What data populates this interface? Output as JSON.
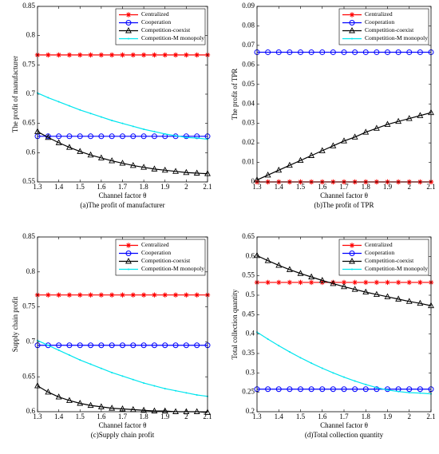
{
  "chart_data": [
    {
      "type": "line",
      "xlabel": "Channel factor θ",
      "ylabel": "The profit of manufacturer",
      "caption": "(a)The profit of manufacturer",
      "x": [
        1.3,
        1.35,
        1.4,
        1.45,
        1.5,
        1.55,
        1.6,
        1.65,
        1.7,
        1.75,
        1.8,
        1.85,
        1.9,
        1.95,
        2,
        2.05,
        2.1
      ],
      "xlim": [
        1.3,
        2.1
      ],
      "xticks": [
        1.3,
        1.4,
        1.5,
        1.6,
        1.7,
        1.8,
        1.9,
        2,
        2.1
      ],
      "ylim": [
        0.55,
        0.85
      ],
      "yticks": [
        0.55,
        0.6,
        0.65,
        0.7,
        0.75,
        0.8,
        0.85
      ],
      "legend": "upper right",
      "series": [
        {
          "name": "Centralized",
          "color": "#ff0000",
          "marker": "star",
          "values": [
            0.767,
            0.767,
            0.767,
            0.767,
            0.767,
            0.767,
            0.767,
            0.767,
            0.767,
            0.767,
            0.767,
            0.767,
            0.767,
            0.767,
            0.767,
            0.767,
            0.767
          ]
        },
        {
          "name": "Cooperation",
          "color": "#0000ff",
          "marker": "circle",
          "values": [
            0.628,
            0.628,
            0.628,
            0.628,
            0.628,
            0.628,
            0.628,
            0.628,
            0.628,
            0.628,
            0.628,
            0.628,
            0.628,
            0.628,
            0.628,
            0.628,
            0.628
          ]
        },
        {
          "name": "Competition-coexist",
          "color": "#000000",
          "marker": "triangle",
          "values": [
            0.636,
            0.626,
            0.617,
            0.609,
            0.602,
            0.596,
            0.591,
            0.586,
            0.582,
            0.578,
            0.575,
            0.572,
            0.57,
            0.568,
            0.566,
            0.565,
            0.564
          ]
        },
        {
          "name": "Competition-M monopoly",
          "color": "#00e5ee",
          "marker": "dot",
          "values": [
            0.702,
            0.694,
            0.687,
            0.68,
            0.673,
            0.667,
            0.661,
            0.655,
            0.65,
            0.645,
            0.64,
            0.636,
            0.632,
            0.629,
            0.626,
            0.625,
            0.623
          ]
        }
      ]
    },
    {
      "type": "line",
      "xlabel": "Channel factor θ",
      "ylabel": "The profit of TPR",
      "caption": "(b)The profit of TPR",
      "x": [
        1.3,
        1.35,
        1.4,
        1.45,
        1.5,
        1.55,
        1.6,
        1.65,
        1.7,
        1.75,
        1.8,
        1.85,
        1.9,
        1.95,
        2,
        2.05,
        2.1
      ],
      "xlim": [
        1.3,
        2.1
      ],
      "xticks": [
        1.3,
        1.4,
        1.5,
        1.6,
        1.7,
        1.8,
        1.9,
        2,
        2.1
      ],
      "ylim": [
        0,
        0.09
      ],
      "yticks": [
        0,
        0.01,
        0.02,
        0.03,
        0.04,
        0.05,
        0.06,
        0.07,
        0.08,
        0.09
      ],
      "legend": "upper right",
      "series": [
        {
          "name": "Centralized",
          "color": "#ff0000",
          "marker": "star",
          "values": [
            0,
            0,
            0,
            0,
            0,
            0,
            0,
            0,
            0,
            0,
            0,
            0,
            0,
            0,
            0,
            0,
            0
          ]
        },
        {
          "name": "Cooperation",
          "color": "#0000ff",
          "marker": "circle",
          "values": [
            0.0665,
            0.0665,
            0.0665,
            0.0665,
            0.0665,
            0.0665,
            0.0665,
            0.0665,
            0.0665,
            0.0665,
            0.0665,
            0.0665,
            0.0665,
            0.0665,
            0.0665,
            0.0665,
            0.0665
          ]
        },
        {
          "name": "Competition-coexist",
          "color": "#000000",
          "marker": "triangle",
          "values": [
            0.001,
            0.0035,
            0.006,
            0.0085,
            0.011,
            0.0135,
            0.016,
            0.0185,
            0.021,
            0.023,
            0.0255,
            0.0275,
            0.0295,
            0.031,
            0.0325,
            0.034,
            0.0355
          ]
        },
        {
          "name": "Competition-M monopoly",
          "color": "#00e5ee",
          "marker": "dot",
          "values": [
            null,
            null,
            null,
            null,
            null,
            null,
            null,
            null,
            null,
            null,
            null,
            null,
            null,
            null,
            null,
            null,
            null
          ]
        }
      ]
    },
    {
      "type": "line",
      "xlabel": "Channel factor θ",
      "ylabel": "Supply chain profit",
      "caption": "(c)Supply chain profit",
      "x": [
        1.3,
        1.35,
        1.4,
        1.45,
        1.5,
        1.55,
        1.6,
        1.65,
        1.7,
        1.75,
        1.8,
        1.85,
        1.9,
        1.95,
        2,
        2.05,
        2.1
      ],
      "xlim": [
        1.3,
        2.1
      ],
      "xticks": [
        1.3,
        1.4,
        1.5,
        1.6,
        1.7,
        1.8,
        1.9,
        2,
        2.1
      ],
      "ylim": [
        0.6,
        0.85
      ],
      "yticks": [
        0.6,
        0.65,
        0.7,
        0.75,
        0.8,
        0.85
      ],
      "legend": "upper right",
      "series": [
        {
          "name": "Centralized",
          "color": "#ff0000",
          "marker": "star",
          "values": [
            0.767,
            0.767,
            0.767,
            0.767,
            0.767,
            0.767,
            0.767,
            0.767,
            0.767,
            0.767,
            0.767,
            0.767,
            0.767,
            0.767,
            0.767,
            0.767,
            0.767
          ]
        },
        {
          "name": "Cooperation",
          "color": "#0000ff",
          "marker": "circle",
          "values": [
            0.695,
            0.695,
            0.695,
            0.695,
            0.695,
            0.695,
            0.695,
            0.695,
            0.695,
            0.695,
            0.695,
            0.695,
            0.695,
            0.695,
            0.695,
            0.695,
            0.695
          ]
        },
        {
          "name": "Competition-coexist",
          "color": "#000000",
          "marker": "triangle",
          "values": [
            0.637,
            0.628,
            0.621,
            0.616,
            0.612,
            0.609,
            0.607,
            0.605,
            0.604,
            0.603,
            0.602,
            0.601,
            0.601,
            0.6,
            0.6,
            0.6,
            0.599
          ]
        },
        {
          "name": "Competition-M monopoly",
          "color": "#00e5ee",
          "marker": "dot",
          "values": [
            0.702,
            0.695,
            0.688,
            0.681,
            0.674,
            0.668,
            0.662,
            0.656,
            0.651,
            0.646,
            0.641,
            0.637,
            0.633,
            0.63,
            0.627,
            0.624,
            0.622
          ]
        }
      ]
    },
    {
      "type": "line",
      "xlabel": "Channel factor θ",
      "ylabel": "Total collection quantity",
      "caption": "(d)Total collection quantity",
      "x": [
        1.3,
        1.35,
        1.4,
        1.45,
        1.5,
        1.55,
        1.6,
        1.65,
        1.7,
        1.75,
        1.8,
        1.85,
        1.9,
        1.95,
        2,
        2.05,
        2.1
      ],
      "xlim": [
        1.3,
        2.1
      ],
      "xticks": [
        1.3,
        1.4,
        1.5,
        1.6,
        1.7,
        1.8,
        1.9,
        2,
        2.1
      ],
      "ylim": [
        0.2,
        0.65
      ],
      "yticks": [
        0.2,
        0.25,
        0.3,
        0.35,
        0.4,
        0.45,
        0.5,
        0.55,
        0.6,
        0.65
      ],
      "legend": "upper right",
      "series": [
        {
          "name": "Centralized",
          "color": "#ff0000",
          "marker": "star",
          "values": [
            0.533,
            0.533,
            0.533,
            0.533,
            0.533,
            0.533,
            0.533,
            0.533,
            0.533,
            0.533,
            0.533,
            0.533,
            0.533,
            0.533,
            0.533,
            0.533,
            0.533
          ]
        },
        {
          "name": "Cooperation",
          "color": "#0000ff",
          "marker": "circle",
          "values": [
            0.258,
            0.258,
            0.258,
            0.258,
            0.258,
            0.258,
            0.258,
            0.258,
            0.258,
            0.258,
            0.258,
            0.258,
            0.258,
            0.258,
            0.258,
            0.258,
            0.258
          ]
        },
        {
          "name": "Competition-coexist",
          "color": "#000000",
          "marker": "triangle",
          "values": [
            0.602,
            0.589,
            0.577,
            0.566,
            0.556,
            0.547,
            0.538,
            0.53,
            0.522,
            0.515,
            0.508,
            0.502,
            0.496,
            0.49,
            0.484,
            0.479,
            0.473
          ]
        },
        {
          "name": "Competition-M monopoly",
          "color": "#00e5ee",
          "marker": "dot",
          "values": [
            0.405,
            0.387,
            0.37,
            0.354,
            0.339,
            0.325,
            0.312,
            0.3,
            0.289,
            0.279,
            0.27,
            0.262,
            0.256,
            0.252,
            0.249,
            0.248,
            0.246
          ]
        }
      ]
    }
  ]
}
